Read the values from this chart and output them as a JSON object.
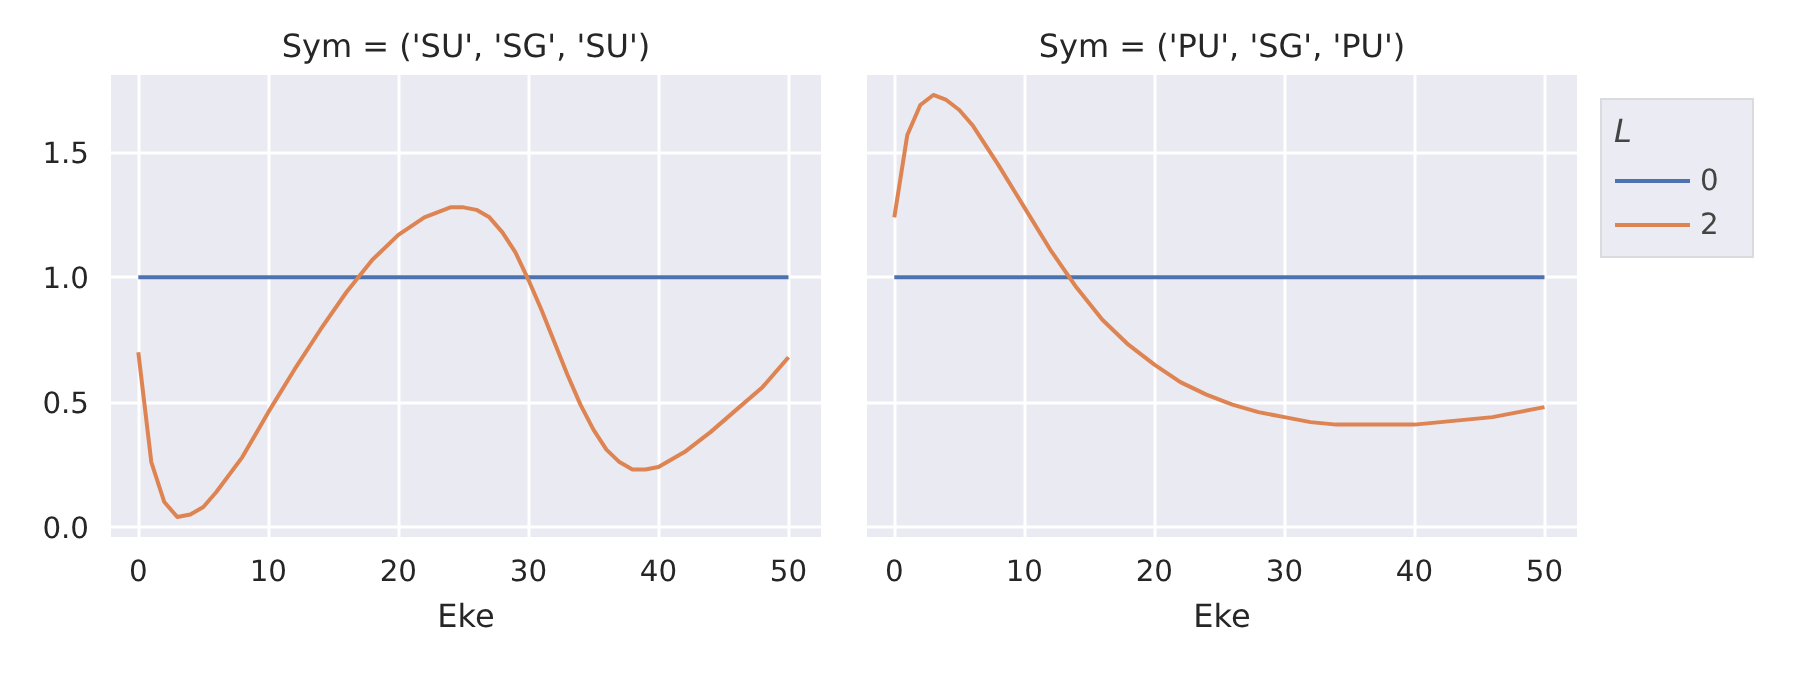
{
  "chart_data": [
    {
      "type": "line",
      "title": "Sym = ('SU', 'SG', 'SU')",
      "xlabel": "Eke",
      "xlim": [
        -2.1,
        52.5
      ],
      "ylim": [
        -0.04,
        1.81
      ],
      "xticks": [
        0,
        10,
        20,
        30,
        40,
        50
      ],
      "yticks": [
        {
          "value": 0,
          "label": "0.0"
        },
        0.5,
        {
          "value": 1,
          "label": "1.0"
        },
        1.5
      ],
      "grid": true,
      "legend": false,
      "series": [
        {
          "color": "#4c72b0",
          "x": [
            0,
            50
          ],
          "values": [
            1.0,
            1.0
          ]
        },
        {
          "color": "#dd8452",
          "x": [
            0,
            1,
            2,
            3,
            4,
            5,
            6,
            8,
            10,
            12,
            14,
            16,
            18,
            20,
            22,
            24,
            25,
            26,
            27,
            28,
            29,
            30,
            31,
            32,
            33,
            34,
            35,
            36,
            37,
            38,
            39,
            40,
            42,
            44,
            46,
            48,
            50
          ],
          "values": [
            0.7,
            0.26,
            0.1,
            0.04,
            0.05,
            0.08,
            0.14,
            0.28,
            0.46,
            0.63,
            0.79,
            0.94,
            1.07,
            1.17,
            1.24,
            1.28,
            1.28,
            1.27,
            1.24,
            1.18,
            1.1,
            0.99,
            0.87,
            0.74,
            0.61,
            0.49,
            0.39,
            0.31,
            0.26,
            0.23,
            0.23,
            0.24,
            0.3,
            0.38,
            0.47,
            0.56,
            0.68
          ]
        }
      ]
    },
    {
      "type": "line",
      "title": "Sym = ('PU', 'SG', 'PU')",
      "xlabel": "Eke",
      "xlim": [
        -2.1,
        52.5
      ],
      "ylim": [
        -0.04,
        1.81
      ],
      "xticks": [
        0,
        10,
        20,
        30,
        40,
        50
      ],
      "grid": true,
      "legend": "right",
      "legend_title": "L",
      "tick_labels": "x",
      "yticks": [
        0,
        0.5,
        1,
        1.5
      ],
      "series": [
        {
          "name": "0",
          "color": "#4c72b0",
          "x": [
            0,
            50
          ],
          "values": [
            1.0,
            1.0
          ]
        },
        {
          "name": "2",
          "color": "#dd8452",
          "x": [
            0,
            1,
            2,
            3,
            4,
            5,
            6,
            8,
            10,
            12,
            14,
            16,
            18,
            20,
            22,
            24,
            26,
            28,
            30,
            32,
            34,
            36,
            38,
            40,
            42,
            44,
            46,
            48,
            50
          ],
          "values": [
            1.24,
            1.57,
            1.69,
            1.73,
            1.71,
            1.67,
            1.61,
            1.45,
            1.28,
            1.11,
            0.96,
            0.83,
            0.73,
            0.65,
            0.58,
            0.53,
            0.49,
            0.46,
            0.44,
            0.42,
            0.41,
            0.41,
            0.41,
            0.41,
            0.42,
            0.43,
            0.44,
            0.46,
            0.48
          ]
        }
      ]
    }
  ]
}
